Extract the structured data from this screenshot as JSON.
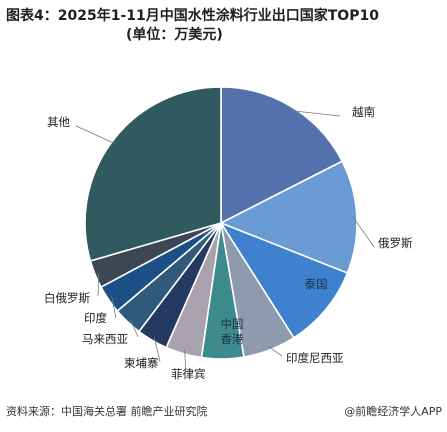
{
  "title": {
    "line1": "图表4：2025年1-11月中国水性涂料行业出口国家TOP10",
    "line2": "(单位：万美元)"
  },
  "chart_data": {
    "type": "pie",
    "title": "图表4：2025年1-11月中国水性涂料行业出口国家TOP10 (单位：万美元)",
    "start_angle_deg": 0,
    "direction": "clockwise",
    "slices": [
      {
        "label": "越南",
        "value": 17.5,
        "color": "#5470ad",
        "label_pos": "outside"
      },
      {
        "label": "俄罗斯",
        "value": 13.5,
        "color": "#6a9bd4",
        "label_pos": "outside"
      },
      {
        "label": "泰国",
        "value": 10.0,
        "color": "#3f80cf",
        "label_pos": "inside"
      },
      {
        "label": "印度尼西亚",
        "value": 6.3,
        "color": "#8e9aad",
        "label_pos": "outside"
      },
      {
        "label": "中国香港",
        "value": 5.0,
        "color": "#3d8b8d",
        "label_pos": "inside"
      },
      {
        "label": "菲律宾",
        "value": 4.3,
        "color": "#a8a2ad",
        "label_pos": "outside"
      },
      {
        "label": "柬埔寨",
        "value": 3.7,
        "color": "#243a60",
        "label_pos": "outside"
      },
      {
        "label": "马来西亚",
        "value": 3.5,
        "color": "#2f5a7a",
        "label_pos": "outside"
      },
      {
        "label": "印度",
        "value": 3.4,
        "color": "#1c4f86",
        "label_pos": "outside"
      },
      {
        "label": "白俄罗斯",
        "value": 3.3,
        "color": "#3d4653",
        "label_pos": "outside"
      },
      {
        "label": "其他",
        "value": 29.5,
        "color": "#2f5a5f",
        "label_pos": "outside"
      }
    ]
  },
  "footer": {
    "source": "资料来源：中国海关总署 前瞻产业研究院",
    "brand": "@前瞻经济学人APP"
  }
}
